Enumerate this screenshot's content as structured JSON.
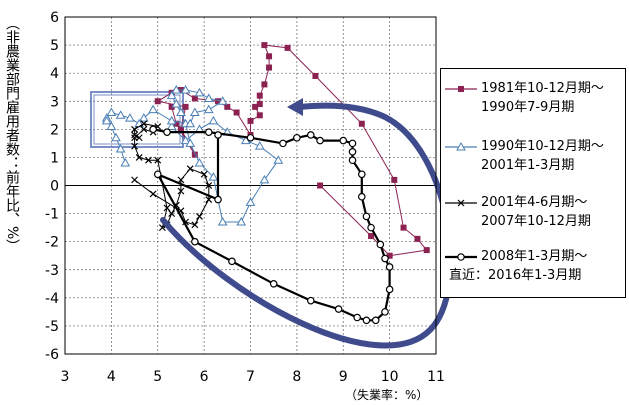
{
  "chart_data": {
    "type": "line",
    "xlabel": "（失業率：%）",
    "ylabel": "（非農業部門雇用者数：前年比、%）",
    "xlim": [
      3,
      11
    ],
    "ylim": [
      -6,
      6
    ],
    "x_ticks": [
      "3",
      "4",
      "5",
      "6",
      "7",
      "8",
      "9",
      "10",
      "11"
    ],
    "y_ticks": [
      "6",
      "5",
      "4",
      "3",
      "2",
      "1",
      "0",
      "-1",
      "-2",
      "-3",
      "-4",
      "-5",
      "-6"
    ],
    "grid": true,
    "legend_position": "right",
    "series": [
      {
        "name": "1981年10-12月期～1990年7-9月期",
        "color": "#8b2252",
        "marker": "square",
        "points": [
          [
            8.5,
            0.0
          ],
          [
            9.6,
            -1.8
          ],
          [
            10.0,
            -2.5
          ],
          [
            10.8,
            -2.3
          ],
          [
            10.6,
            -1.9
          ],
          [
            10.3,
            -1.5
          ],
          [
            10.1,
            0.2
          ],
          [
            9.4,
            2.2
          ],
          [
            8.4,
            3.9
          ],
          [
            7.8,
            4.9
          ],
          [
            7.3,
            5.0
          ],
          [
            7.4,
            4.6
          ],
          [
            7.4,
            4.2
          ],
          [
            7.3,
            3.6
          ],
          [
            7.2,
            3.2
          ],
          [
            7.2,
            2.9
          ],
          [
            7.1,
            2.8
          ],
          [
            7.2,
            2.5
          ],
          [
            7.0,
            2.3
          ],
          [
            7.0,
            1.8
          ],
          [
            6.7,
            2.6
          ],
          [
            6.5,
            2.8
          ],
          [
            6.3,
            3.0
          ],
          [
            5.8,
            3.1
          ],
          [
            5.5,
            3.4
          ],
          [
            5.3,
            3.3
          ],
          [
            5.0,
            3.0
          ],
          [
            5.6,
            2.8
          ],
          [
            5.5,
            2.0
          ],
          [
            5.8,
            1.1
          ],
          [
            5.4,
            2.2
          ],
          [
            5.3,
            2.8
          ]
        ]
      },
      {
        "name": "1990年10-12月期～2001年1-3月期",
        "color": "#4a7fb5",
        "marker": "triangle",
        "points": [
          [
            5.3,
            2.1
          ],
          [
            5.6,
            1.6
          ],
          [
            5.9,
            2.0
          ],
          [
            6.2,
            2.3
          ],
          [
            6.5,
            1.9
          ],
          [
            6.9,
            1.6
          ],
          [
            7.2,
            1.4
          ],
          [
            7.6,
            0.9
          ],
          [
            7.3,
            0.2
          ],
          [
            7.0,
            -0.6
          ],
          [
            6.8,
            -1.3
          ],
          [
            6.4,
            -1.3
          ],
          [
            6.2,
            0.3
          ],
          [
            5.9,
            0.8
          ],
          [
            5.7,
            1.5
          ],
          [
            5.6,
            2.2
          ],
          [
            5.5,
            2.6
          ],
          [
            5.4,
            2.9
          ],
          [
            5.3,
            3.2
          ],
          [
            5.4,
            3.4
          ],
          [
            5.6,
            3.4
          ],
          [
            5.9,
            3.3
          ],
          [
            6.1,
            3.1
          ],
          [
            6.4,
            3.0
          ],
          [
            6.1,
            2.7
          ],
          [
            5.8,
            2.6
          ],
          [
            5.7,
            2.2
          ],
          [
            5.3,
            2.3
          ],
          [
            4.9,
            2.7
          ],
          [
            4.7,
            2.4
          ],
          [
            4.6,
            2.2
          ],
          [
            4.4,
            2.4
          ],
          [
            4.2,
            2.5
          ],
          [
            4.0,
            2.6
          ],
          [
            3.9,
            2.4
          ],
          [
            3.9,
            2.3
          ],
          [
            4.0,
            2.1
          ],
          [
            4.1,
            1.7
          ],
          [
            4.2,
            1.3
          ],
          [
            4.3,
            0.8
          ]
        ]
      },
      {
        "name": "2001年4-6月期～2007年10-12月期",
        "color": "#000000",
        "marker": "x",
        "points": [
          [
            4.5,
            0.2
          ],
          [
            4.9,
            -0.3
          ],
          [
            5.5,
            -0.9
          ],
          [
            5.6,
            -1.3
          ],
          [
            5.8,
            -1.4
          ],
          [
            5.9,
            -1.1
          ],
          [
            6.1,
            -0.5
          ],
          [
            6.1,
            0.0
          ],
          [
            6.0,
            0.4
          ],
          [
            5.7,
            0.6
          ],
          [
            5.5,
            0.2
          ],
          [
            5.5,
            -0.2
          ],
          [
            5.4,
            -0.7
          ],
          [
            5.3,
            -1.0
          ],
          [
            5.2,
            -1.4
          ],
          [
            5.1,
            -1.5
          ],
          [
            5.2,
            -0.8
          ],
          [
            5.0,
            0.9
          ],
          [
            4.8,
            0.9
          ],
          [
            4.6,
            1.0
          ],
          [
            4.5,
            1.4
          ],
          [
            4.5,
            1.7
          ],
          [
            4.7,
            2.0
          ],
          [
            4.9,
            1.9
          ],
          [
            5.0,
            2.1
          ],
          [
            4.7,
            2.2
          ],
          [
            4.5,
            2.0
          ],
          [
            4.5,
            1.8
          ],
          [
            4.6,
            1.7
          ]
        ]
      },
      {
        "name": "2008年1-3月期～直近：2016年1-3月期",
        "color": "#000000",
        "marker": "circle",
        "points": [
          [
            4.9,
            2.0
          ],
          [
            5.2,
            1.9
          ],
          [
            6.1,
            1.9
          ],
          [
            7.0,
            1.7
          ],
          [
            7.7,
            1.5
          ],
          [
            8.0,
            1.7
          ],
          [
            8.3,
            1.8
          ],
          [
            8.5,
            1.6
          ],
          [
            9.0,
            1.6
          ],
          [
            9.2,
            1.5
          ],
          [
            9.2,
            1.2
          ],
          [
            9.2,
            0.9
          ],
          [
            9.4,
            0.4
          ],
          [
            9.4,
            -0.4
          ],
          [
            9.5,
            -1.1
          ],
          [
            9.6,
            -1.5
          ],
          [
            9.8,
            -2.1
          ],
          [
            9.9,
            -2.6
          ],
          [
            10.0,
            -2.9
          ],
          [
            10.0,
            -3.7
          ],
          [
            9.9,
            -4.5
          ],
          [
            9.7,
            -4.8
          ],
          [
            9.5,
            -4.8
          ],
          [
            9.3,
            -4.7
          ],
          [
            8.9,
            -4.4
          ],
          [
            8.3,
            -4.1
          ],
          [
            7.5,
            -3.5
          ],
          [
            6.6,
            -2.7
          ],
          [
            5.8,
            -2.0
          ],
          [
            5.0,
            0.4
          ],
          [
            6.3,
            -0.5
          ],
          [
            6.3,
            1.8
          ]
        ]
      }
    ]
  }
}
